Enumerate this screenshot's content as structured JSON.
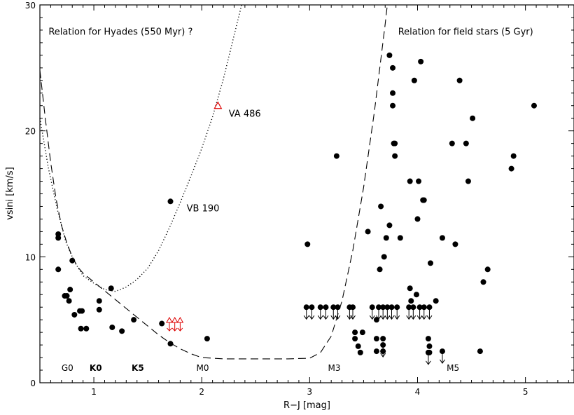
{
  "chart_data": {
    "type": "scatter",
    "xlabel": "R−J [mag]",
    "ylabel": "vsini [km/s]",
    "xlim": [
      0.5,
      5.45
    ],
    "ylim": [
      0,
      30
    ],
    "xticks": [
      {
        "value": 1,
        "label": "1"
      },
      {
        "value": 2,
        "label": "2"
      },
      {
        "value": 3,
        "label": "3"
      },
      {
        "value": 4,
        "label": "4"
      },
      {
        "value": 5,
        "label": "5"
      }
    ],
    "yticks": [
      {
        "value": 0,
        "label": "0"
      },
      {
        "value": 10,
        "label": "10"
      },
      {
        "value": 20,
        "label": "20"
      },
      {
        "value": 30,
        "label": "30"
      }
    ],
    "annotations": [
      {
        "text": "Relation for Hyades (550 Myr) ?",
        "x": 0.58,
        "y": 27.9
      },
      {
        "text": "Relation for field stars (5 Gyr)",
        "x": 3.82,
        "y": 27.9
      },
      {
        "text": "VA 486",
        "x": 2.25,
        "y": 21.4
      },
      {
        "text": "VB 190",
        "x": 1.86,
        "y": 13.9
      }
    ],
    "spectral_types": [
      {
        "text": "G0",
        "x": 0.7,
        "bold": false
      },
      {
        "text": "K0",
        "x": 0.96,
        "bold": true
      },
      {
        "text": "K5",
        "x": 1.35,
        "bold": true
      },
      {
        "text": "M0",
        "x": 1.95,
        "bold": false
      },
      {
        "text": "M3",
        "x": 3.17,
        "bold": false
      },
      {
        "text": "M5",
        "x": 4.27,
        "bold": false
      }
    ],
    "curves": [
      {
        "name": "Relation for Hyades (550 Myr) ?",
        "style": "dotted",
        "points": [
          [
            0.5,
            21
          ],
          [
            0.58,
            17
          ],
          [
            0.66,
            13.8
          ],
          [
            0.74,
            11.2
          ],
          [
            0.82,
            9.6
          ],
          [
            0.9,
            8.5
          ],
          [
            1.0,
            7.9
          ],
          [
            1.1,
            7.4
          ],
          [
            1.2,
            7.25
          ],
          [
            1.3,
            7.6
          ],
          [
            1.4,
            8.2
          ],
          [
            1.5,
            9.1
          ],
          [
            1.6,
            10.5
          ],
          [
            1.7,
            12.3
          ],
          [
            1.8,
            14.3
          ],
          [
            1.9,
            16.4
          ],
          [
            2.0,
            18.6
          ],
          [
            2.1,
            21.1
          ],
          [
            2.2,
            24.1
          ],
          [
            2.3,
            27.6
          ],
          [
            2.37,
            30
          ]
        ]
      },
      {
        "name": "Relation for field stars (5 Gyr)",
        "style": "dashed",
        "points": [
          [
            0.5,
            24.8
          ],
          [
            0.55,
            21
          ],
          [
            0.6,
            17.5
          ],
          [
            0.65,
            14.6
          ],
          [
            0.7,
            12.5
          ],
          [
            0.75,
            11.1
          ],
          [
            0.8,
            10.0
          ],
          [
            0.85,
            9.2
          ],
          [
            0.9,
            8.7
          ],
          [
            1.0,
            8.0
          ],
          [
            1.1,
            7.3
          ],
          [
            1.2,
            6.6
          ],
          [
            1.3,
            5.9
          ],
          [
            1.4,
            5.2
          ],
          [
            1.5,
            4.5
          ],
          [
            1.6,
            3.8
          ],
          [
            1.7,
            3.2
          ],
          [
            1.8,
            2.7
          ],
          [
            1.9,
            2.3
          ],
          [
            2.0,
            2.0
          ],
          [
            2.2,
            1.9
          ],
          [
            2.5,
            1.9
          ],
          [
            2.8,
            1.9
          ],
          [
            3.0,
            1.95
          ],
          [
            3.1,
            2.4
          ],
          [
            3.2,
            3.7
          ],
          [
            3.3,
            6.5
          ],
          [
            3.4,
            10.5
          ],
          [
            3.5,
            15.5
          ],
          [
            3.6,
            21.5
          ],
          [
            3.7,
            28.5
          ],
          [
            3.72,
            30
          ]
        ]
      }
    ],
    "series": [
      {
        "marker": "filled-circle",
        "color": "#000000",
        "points": [
          [
            0.67,
            11.8
          ],
          [
            0.67,
            11.5
          ],
          [
            0.67,
            9.0
          ],
          [
            0.73,
            6.9
          ],
          [
            0.75,
            6.9
          ],
          [
            0.77,
            6.5
          ],
          [
            0.78,
            7.4
          ],
          [
            0.8,
            9.7
          ],
          [
            0.82,
            5.4
          ],
          [
            0.87,
            5.7
          ],
          [
            0.89,
            5.7
          ],
          [
            0.88,
            4.3
          ],
          [
            0.93,
            4.3
          ],
          [
            1.05,
            6.5
          ],
          [
            1.05,
            5.8
          ],
          [
            1.16,
            7.5
          ],
          [
            1.17,
            4.4
          ],
          [
            1.26,
            4.1
          ],
          [
            1.37,
            5.0
          ],
          [
            1.63,
            4.7
          ],
          [
            1.71,
            14.4
          ],
          [
            1.71,
            3.1
          ],
          [
            2.05,
            3.5
          ],
          [
            2.98,
            11.0
          ],
          [
            3.25,
            18.0
          ],
          [
            3.42,
            4.0
          ],
          [
            3.42,
            3.5
          ],
          [
            3.45,
            2.9
          ],
          [
            3.47,
            2.4
          ],
          [
            3.49,
            4.0
          ],
          [
            3.54,
            12.0
          ],
          [
            3.62,
            5.0
          ],
          [
            3.62,
            3.5
          ],
          [
            3.62,
            2.5
          ],
          [
            3.65,
            9.0
          ],
          [
            3.66,
            14.0
          ],
          [
            3.68,
            3.5
          ],
          [
            3.68,
            2.5
          ],
          [
            3.69,
            10.0
          ],
          [
            3.71,
            11.5
          ],
          [
            3.74,
            26.0
          ],
          [
            3.74,
            12.5
          ],
          [
            3.77,
            25.0
          ],
          [
            3.77,
            23.0
          ],
          [
            3.77,
            22.0
          ],
          [
            3.78,
            19.0
          ],
          [
            3.79,
            19.0
          ],
          [
            3.79,
            18.0
          ],
          [
            3.84,
            11.5
          ],
          [
            3.93,
            7.5
          ],
          [
            3.93,
            16.0
          ],
          [
            3.94,
            6.5
          ],
          [
            3.97,
            24.0
          ],
          [
            3.99,
            7.0
          ],
          [
            4.0,
            13.0
          ],
          [
            4.01,
            16.0
          ],
          [
            4.03,
            25.5
          ],
          [
            4.05,
            14.5
          ],
          [
            4.06,
            14.5
          ],
          [
            4.1,
            3.5
          ],
          [
            4.11,
            2.9
          ],
          [
            4.11,
            2.4
          ],
          [
            4.12,
            9.5
          ],
          [
            4.17,
            6.5
          ],
          [
            4.23,
            11.5
          ],
          [
            4.32,
            19.0
          ],
          [
            4.35,
            11.0
          ],
          [
            4.39,
            24.0
          ],
          [
            4.45,
            19.0
          ],
          [
            4.47,
            16.0
          ],
          [
            4.51,
            21.0
          ],
          [
            4.58,
            2.5
          ],
          [
            4.61,
            8.0
          ],
          [
            4.65,
            9.0
          ],
          [
            4.87,
            17.0
          ],
          [
            4.89,
            18.0
          ],
          [
            5.08,
            22.0
          ]
        ]
      },
      {
        "marker": "upper-limit-circle",
        "color": "#000000",
        "points": [
          [
            2.97,
            6.0
          ],
          [
            3.02,
            6.0
          ],
          [
            3.1,
            6.0
          ],
          [
            3.15,
            6.0
          ],
          [
            3.22,
            6.0
          ],
          [
            3.26,
            6.0
          ],
          [
            3.37,
            6.0
          ],
          [
            3.4,
            6.0
          ],
          [
            3.58,
            6.0
          ],
          [
            3.64,
            6.0
          ],
          [
            3.68,
            6.0
          ],
          [
            3.72,
            6.0
          ],
          [
            3.76,
            6.0
          ],
          [
            3.81,
            6.0
          ],
          [
            3.92,
            6.0
          ],
          [
            3.96,
            6.0
          ],
          [
            4.02,
            6.0
          ],
          [
            4.06,
            6.0
          ],
          [
            4.11,
            6.0
          ],
          [
            3.68,
            3.0
          ],
          [
            4.1,
            2.4
          ],
          [
            4.23,
            2.5
          ]
        ]
      },
      {
        "marker": "red-open-triangle",
        "color": "#dd0000",
        "points": [
          [
            2.15,
            22.0
          ]
        ]
      },
      {
        "marker": "red-lower-limit-triangle",
        "color": "#dd0000",
        "points": [
          [
            1.7,
            4.9
          ],
          [
            1.75,
            4.9
          ],
          [
            1.8,
            4.9
          ]
        ]
      }
    ]
  }
}
